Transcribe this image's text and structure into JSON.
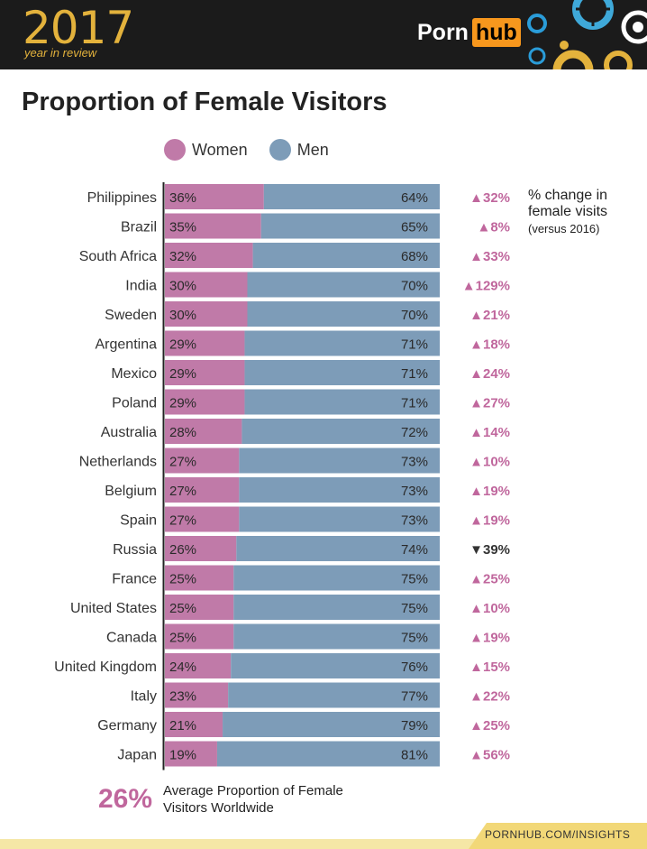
{
  "header": {
    "year": "2017",
    "subtitle": "year in review",
    "brand_part1": "Porn",
    "brand_part2": "hub",
    "brand_accent": "#f7971d"
  },
  "title": "Proportion of Female Visitors",
  "legend": {
    "women_label": "Women",
    "men_label": "Men",
    "women_color": "#c07aa8",
    "men_color": "#7d9cb8"
  },
  "side_note": {
    "line1": "% change in female visits",
    "line2": "(versus 2016)"
  },
  "chart_data": {
    "type": "bar",
    "orientation": "horizontal",
    "stacked": true,
    "title": "Proportion of Female Visitors",
    "categories": [
      "Philippines",
      "Brazil",
      "South Africa",
      "India",
      "Sweden",
      "Argentina",
      "Mexico",
      "Poland",
      "Australia",
      "Netherlands",
      "Belgium",
      "Spain",
      "Russia",
      "France",
      "United States",
      "Canada",
      "United Kingdom",
      "Italy",
      "Germany",
      "Japan"
    ],
    "series": [
      {
        "name": "Women",
        "values": [
          36,
          35,
          32,
          30,
          30,
          29,
          29,
          29,
          28,
          27,
          27,
          27,
          26,
          25,
          25,
          25,
          24,
          23,
          21,
          19
        ]
      },
      {
        "name": "Men",
        "values": [
          64,
          65,
          68,
          70,
          70,
          71,
          71,
          71,
          72,
          73,
          73,
          73,
          74,
          75,
          75,
          75,
          76,
          77,
          79,
          81
        ]
      }
    ],
    "change": [
      "▲32%",
      "▲8%",
      "▲33%",
      "▲129%",
      "▲21%",
      "▲18%",
      "▲24%",
      "▲27%",
      "▲14%",
      "▲10%",
      "▲19%",
      "▲19%",
      "▼39%",
      "▲25%",
      "▲10%",
      "▲19%",
      "▲15%",
      "▲22%",
      "▲25%",
      "▲56%"
    ],
    "change_direction": [
      "up",
      "up",
      "up",
      "up",
      "up",
      "up",
      "up",
      "up",
      "up",
      "up",
      "up",
      "up",
      "down",
      "up",
      "up",
      "up",
      "up",
      "up",
      "up",
      "up"
    ],
    "xlim": [
      0,
      100
    ],
    "legend": "top",
    "colors": {
      "women": "#c07aa8",
      "men": "#7d9cb8",
      "change_up": "#c0679d",
      "change_down": "#333333"
    }
  },
  "footer": {
    "average_pct": "26%",
    "average_label": "Average Proportion of Female Visitors Worldwide",
    "url": "PORNHUB.COM/INSIGHTS"
  }
}
